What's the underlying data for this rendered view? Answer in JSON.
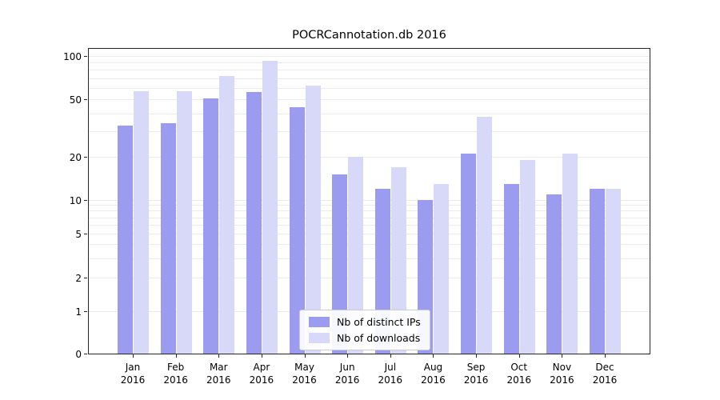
{
  "chart_data": {
    "type": "bar",
    "title": "POCRCannotation.db 2016",
    "xlabel": "",
    "ylabel": "",
    "yscale": "symlog",
    "ylim": [
      0,
      110
    ],
    "grid": true,
    "legend_position": "lower center inside",
    "yticks": [
      0,
      1,
      2,
      5,
      10,
      20,
      50,
      100
    ],
    "gridlines": [
      1,
      2,
      3,
      4,
      5,
      6,
      7,
      8,
      9,
      10,
      20,
      30,
      40,
      50,
      60,
      70,
      80,
      90,
      100
    ],
    "categories": [
      "Jan 2016",
      "Feb 2016",
      "Mar 2016",
      "Apr 2016",
      "May 2016",
      "Jun 2016",
      "Jul 2016",
      "Aug 2016",
      "Sep 2016",
      "Oct 2016",
      "Nov 2016",
      "Dec 2016"
    ],
    "series": [
      {
        "name": "Nb of distinct IPs",
        "color": "#9b9bf0",
        "values": [
          33,
          34,
          51,
          56,
          44,
          15,
          12,
          10,
          21,
          13,
          11,
          12
        ]
      },
      {
        "name": "Nb of downloads",
        "color": "#d8d8f8",
        "values": [
          57,
          57,
          73,
          93,
          62,
          20,
          17,
          13,
          38,
          19,
          21,
          12
        ]
      }
    ]
  }
}
